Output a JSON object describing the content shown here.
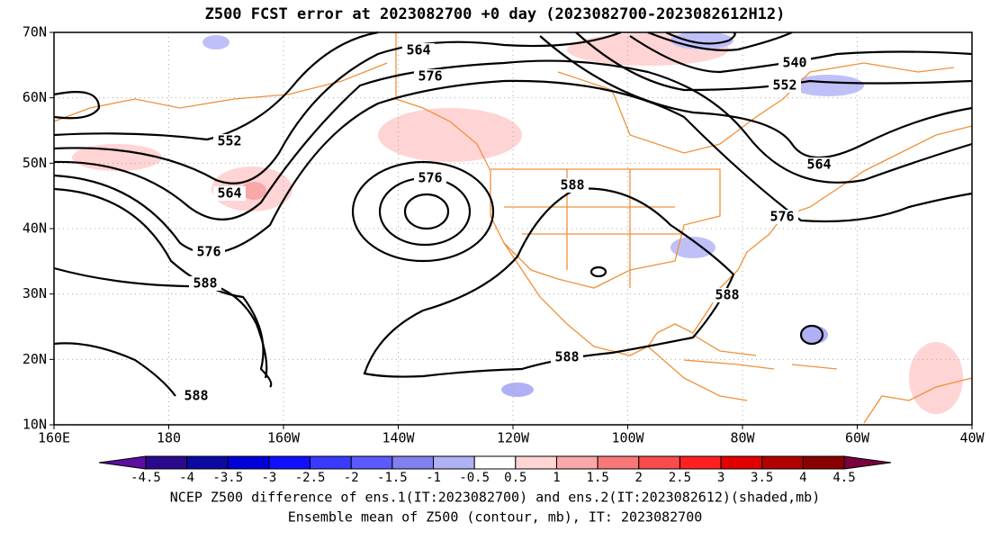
{
  "title": "Z500 FCST error at 2023082700 +0 day (2023082700-2023082612H12)",
  "x_axis": {
    "labels": [
      "160E",
      "180",
      "160W",
      "140W",
      "120W",
      "100W",
      "80W",
      "60W",
      "40W"
    ]
  },
  "y_axis": {
    "labels": [
      "70N",
      "60N",
      "50N",
      "40N",
      "30N",
      "20N",
      "10N"
    ]
  },
  "contour_labels": [
    "564",
    "576",
    "540",
    "552",
    "552",
    "564",
    "576",
    "588",
    "576",
    "588",
    "564",
    "576",
    "588",
    "588",
    "588"
  ],
  "colorbar": {
    "labels": [
      "-4.5",
      "-4",
      "-3.5",
      "-3",
      "-2.5",
      "-2",
      "-1.5",
      "-1",
      "-0.5",
      "0.5",
      "1",
      "1.5",
      "2",
      "2.5",
      "3",
      "3.5",
      "4",
      "4.5"
    ],
    "colors": [
      "#5a0fa0",
      "#2a0a8c",
      "#0a0aa0",
      "#0000d8",
      "#1010ff",
      "#3a3aff",
      "#5a5aff",
      "#8080f0",
      "#b0b0f4",
      "#ffffff",
      "#ffd4d4",
      "#f8a8a8",
      "#f87878",
      "#f84c4c",
      "#ff2020",
      "#e00000",
      "#b00000",
      "#880000",
      "#7a0040"
    ]
  },
  "caption": [
    "NCEP Z500 difference of ens.1(IT:2023082700) and ens.2(IT:2023082612)(shaded,mb)",
    "Ensemble mean of Z500 (contour, mb), IT: 2023082700"
  ]
}
